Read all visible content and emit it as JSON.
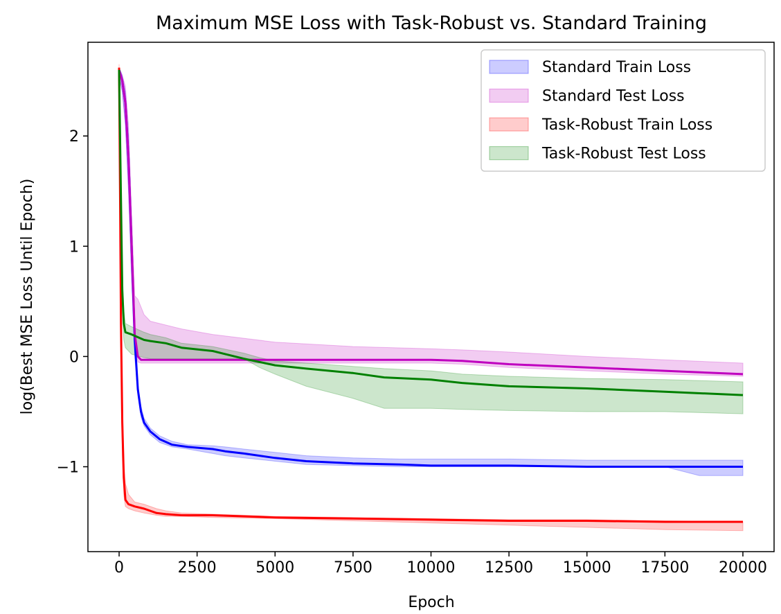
{
  "chart_data": {
    "type": "line",
    "title": "Maximum MSE Loss with Task-Robust vs. Standard Training",
    "xlabel": "Epoch",
    "ylabel": "log(Best MSE Loss Until Epoch)",
    "xlim": [
      -1000,
      21000
    ],
    "ylim": [
      -1.77,
      2.85
    ],
    "xticks": [
      0,
      2500,
      5000,
      7500,
      10000,
      12500,
      15000,
      17500,
      20000
    ],
    "xtick_labels": [
      "0",
      "2500",
      "5000",
      "7500",
      "10000",
      "12500",
      "15000",
      "17500",
      "20000"
    ],
    "yticks": [
      -1,
      0,
      1,
      2
    ],
    "ytick_labels": [
      "−1",
      "0",
      "1",
      "2"
    ],
    "grid": false,
    "legend_position": "top-right",
    "series": [
      {
        "name": "Standard Train Loss",
        "color": "#0000ff",
        "x": [
          0,
          100,
          200,
          300,
          400,
          500,
          600,
          700,
          800,
          1000,
          1300,
          1700,
          2200,
          3000,
          3400,
          4000,
          5000,
          6000,
          7500,
          9000,
          10000,
          12500,
          15000,
          17500,
          18600,
          20000
        ],
        "y": [
          2.6,
          2.5,
          2.3,
          1.8,
          1.0,
          0.15,
          -0.3,
          -0.5,
          -0.6,
          -0.68,
          -0.75,
          -0.8,
          -0.82,
          -0.84,
          -0.86,
          -0.88,
          -0.92,
          -0.95,
          -0.97,
          -0.98,
          -0.99,
          -0.99,
          -1.0,
          -1.0,
          -1.0,
          -1.0
        ],
        "lower": [
          2.55,
          2.4,
          2.1,
          1.5,
          0.7,
          0.0,
          -0.35,
          -0.55,
          -0.63,
          -0.71,
          -0.78,
          -0.82,
          -0.84,
          -0.88,
          -0.9,
          -0.92,
          -0.95,
          -0.98,
          -0.99,
          -1.0,
          -1.0,
          -1.0,
          -1.0,
          -1.0,
          -1.08,
          -1.08
        ],
        "upper": [
          2.62,
          2.55,
          2.4,
          2.0,
          1.2,
          0.3,
          -0.25,
          -0.45,
          -0.56,
          -0.65,
          -0.72,
          -0.77,
          -0.8,
          -0.81,
          -0.82,
          -0.84,
          -0.87,
          -0.9,
          -0.92,
          -0.93,
          -0.93,
          -0.93,
          -0.94,
          -0.94,
          -0.94,
          -0.94
        ]
      },
      {
        "name": "Standard Test Loss",
        "color": "#bf00bf",
        "x": [
          0,
          100,
          200,
          300,
          400,
          500,
          600,
          700,
          800,
          1000,
          2000,
          3000,
          5000,
          7500,
          10000,
          11000,
          12500,
          15000,
          17500,
          20000
        ],
        "y": [
          2.6,
          2.5,
          2.3,
          1.8,
          1.0,
          0.2,
          0.0,
          -0.03,
          -0.03,
          -0.03,
          -0.03,
          -0.03,
          -0.03,
          -0.03,
          -0.03,
          -0.04,
          -0.07,
          -0.1,
          -0.13,
          -0.16
        ],
        "lower": [
          2.55,
          2.4,
          2.1,
          1.5,
          0.7,
          0.1,
          -0.05,
          -0.06,
          -0.06,
          -0.06,
          -0.06,
          -0.06,
          -0.06,
          -0.06,
          -0.06,
          -0.07,
          -0.1,
          -0.13,
          -0.16,
          -0.18
        ],
        "upper": [
          2.62,
          2.55,
          2.45,
          2.1,
          1.3,
          0.55,
          0.52,
          0.45,
          0.38,
          0.32,
          0.25,
          0.2,
          0.13,
          0.09,
          0.07,
          0.06,
          0.04,
          0.0,
          -0.03,
          -0.06
        ]
      },
      {
        "name": "Task-Robust Train Loss",
        "color": "#ff0000",
        "x": [
          0,
          30,
          60,
          100,
          150,
          200,
          300,
          500,
          800,
          1200,
          1500,
          2000,
          3000,
          5000,
          7500,
          10000,
          12500,
          15000,
          17500,
          20000
        ],
        "y": [
          2.62,
          1.5,
          0.3,
          -0.6,
          -1.1,
          -1.3,
          -1.34,
          -1.36,
          -1.38,
          -1.42,
          -1.43,
          -1.44,
          -1.44,
          -1.46,
          -1.47,
          -1.48,
          -1.49,
          -1.49,
          -1.5,
          -1.5
        ],
        "lower": [
          2.55,
          1.2,
          0.0,
          -0.9,
          -1.25,
          -1.36,
          -1.38,
          -1.4,
          -1.42,
          -1.44,
          -1.45,
          -1.45,
          -1.46,
          -1.47,
          -1.49,
          -1.51,
          -1.53,
          -1.55,
          -1.57,
          -1.58
        ],
        "upper": [
          2.65,
          1.8,
          0.6,
          -0.3,
          -0.95,
          -1.15,
          -1.25,
          -1.32,
          -1.34,
          -1.38,
          -1.4,
          -1.42,
          -1.43,
          -1.45,
          -1.46,
          -1.47,
          -1.48,
          -1.48,
          -1.49,
          -1.5
        ]
      },
      {
        "name": "Task-Robust Test Loss",
        "color": "#008000",
        "x": [
          0,
          50,
          100,
          150,
          200,
          400,
          800,
          1000,
          1500,
          2000,
          3000,
          4000,
          4500,
          5000,
          6000,
          7500,
          8500,
          10000,
          11000,
          12500,
          15000,
          17500,
          20000
        ],
        "y": [
          2.6,
          1.6,
          0.6,
          0.3,
          0.22,
          0.2,
          0.15,
          0.14,
          0.12,
          0.08,
          0.05,
          -0.02,
          -0.05,
          -0.08,
          -0.11,
          -0.15,
          -0.19,
          -0.21,
          -0.24,
          -0.27,
          -0.29,
          -0.32,
          -0.35
        ],
        "lower": [
          2.55,
          1.4,
          0.4,
          0.15,
          0.08,
          0.02,
          -0.01,
          -0.02,
          -0.02,
          -0.02,
          -0.02,
          -0.02,
          -0.1,
          -0.16,
          -0.27,
          -0.38,
          -0.47,
          -0.47,
          -0.48,
          -0.49,
          -0.5,
          -0.5,
          -0.52
        ],
        "upper": [
          2.62,
          1.8,
          0.8,
          0.42,
          0.3,
          0.27,
          0.22,
          0.2,
          0.17,
          0.12,
          0.09,
          0.03,
          -0.01,
          -0.04,
          -0.06,
          -0.09,
          -0.11,
          -0.13,
          -0.16,
          -0.18,
          -0.2,
          -0.21,
          -0.23
        ]
      }
    ]
  }
}
